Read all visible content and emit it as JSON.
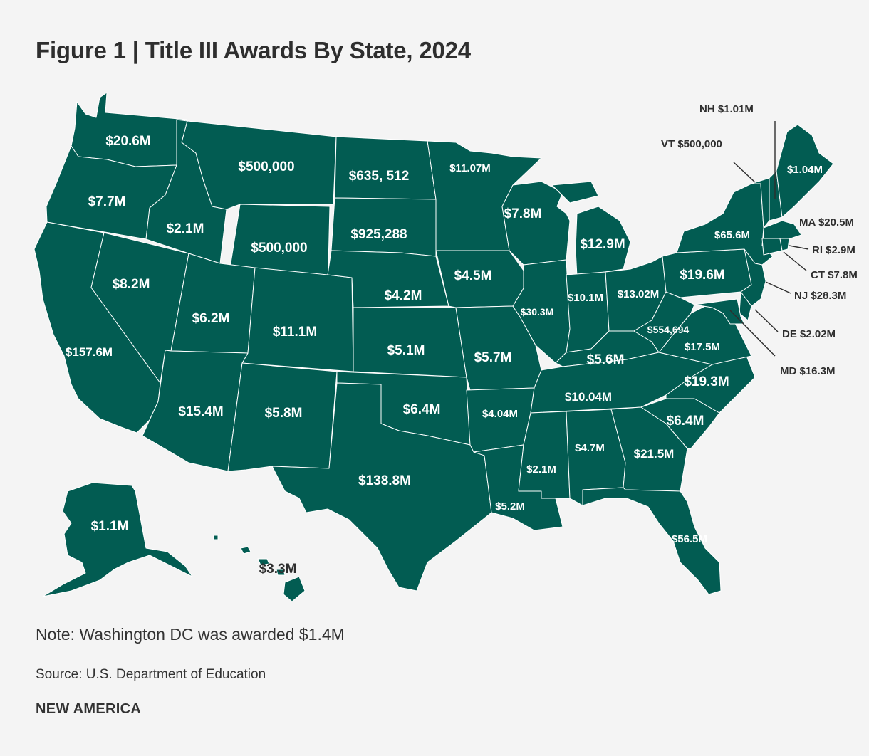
{
  "title": "Figure 1 | Title III Awards By State, 2024",
  "map": {
    "fill_color": "#025c52",
    "states": [
      {
        "code": "WA",
        "value": "$20.6M"
      },
      {
        "code": "OR",
        "value": "$7.7M"
      },
      {
        "code": "CA",
        "value": "$157.6M"
      },
      {
        "code": "NV",
        "value": "$8.2M"
      },
      {
        "code": "ID",
        "value": "$2.1M"
      },
      {
        "code": "MT",
        "value": "$500,000"
      },
      {
        "code": "WY",
        "value": "$500,000"
      },
      {
        "code": "UT",
        "value": "$6.2M"
      },
      {
        "code": "AZ",
        "value": "$15.4M"
      },
      {
        "code": "CO",
        "value": "$11.1M"
      },
      {
        "code": "NM",
        "value": "$5.8M"
      },
      {
        "code": "ND",
        "value": "$635, 512"
      },
      {
        "code": "SD",
        "value": "$925,288"
      },
      {
        "code": "NE",
        "value": "$4.2M"
      },
      {
        "code": "KS",
        "value": "$5.1M"
      },
      {
        "code": "OK",
        "value": "$6.4M"
      },
      {
        "code": "TX",
        "value": "$138.8M"
      },
      {
        "code": "MN",
        "value": "$11.07M"
      },
      {
        "code": "IA",
        "value": "$4.5M"
      },
      {
        "code": "MO",
        "value": "$5.7M"
      },
      {
        "code": "AR",
        "value": "$4.04M"
      },
      {
        "code": "LA",
        "value": "$5.2M"
      },
      {
        "code": "WI",
        "value": "$7.8M"
      },
      {
        "code": "IL",
        "value": "$30.3M"
      },
      {
        "code": "MI",
        "value": "$12.9M"
      },
      {
        "code": "IN",
        "value": "$10.1M"
      },
      {
        "code": "OH",
        "value": "$13.02M"
      },
      {
        "code": "KY",
        "value": "$5.6M"
      },
      {
        "code": "TN",
        "value": "$10.04M"
      },
      {
        "code": "MS",
        "value": "$2.1M"
      },
      {
        "code": "AL",
        "value": "$4.7M"
      },
      {
        "code": "GA",
        "value": "$21.5M"
      },
      {
        "code": "FL",
        "value": "$56.5M"
      },
      {
        "code": "SC",
        "value": "$6.4M"
      },
      {
        "code": "NC",
        "value": "$19.3M"
      },
      {
        "code": "VA",
        "value": "$17.5M"
      },
      {
        "code": "WV",
        "value": "$554,694"
      },
      {
        "code": "PA",
        "value": "$19.6M"
      },
      {
        "code": "NY",
        "value": "$65.6M"
      },
      {
        "code": "ME",
        "value": "$1.04M"
      },
      {
        "code": "AK",
        "value": "$1.1M"
      },
      {
        "code": "HI",
        "value": "$3.3M"
      }
    ],
    "callouts": {
      "nh": "NH $1.01M",
      "vt": "VT $500,000",
      "ma": "MA $20.5M",
      "ri": "RI $2.9M",
      "ct": "CT $7.8M",
      "nj": "NJ $28.3M",
      "de": "DE $2.02M",
      "md": "MD $16.3M"
    }
  },
  "note": "Note: Washington DC was awarded $1.4M",
  "source": "Source: U.S. Department of Education",
  "brand": "NEW AMERICA"
}
